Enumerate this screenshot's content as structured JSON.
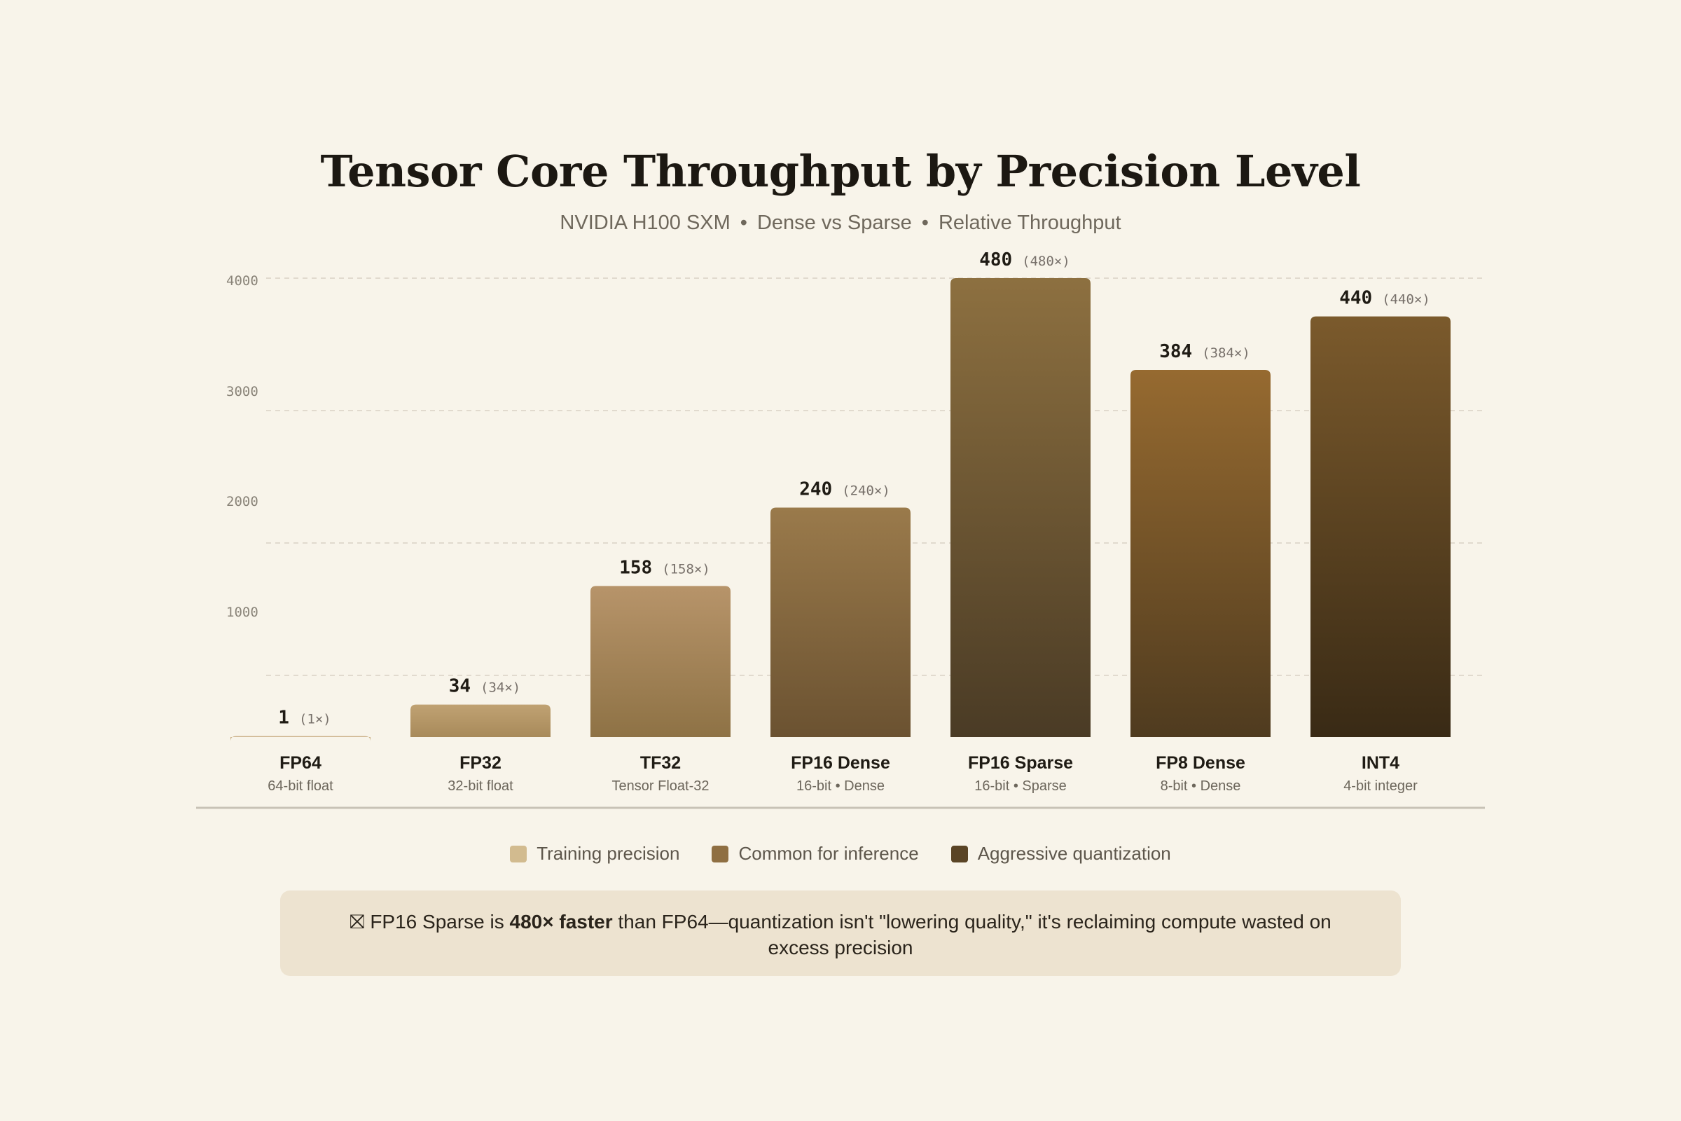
{
  "title": "Tensor Core Throughput by Precision Level",
  "subtitle": {
    "part1": "NVIDIA H100 SXM",
    "part2": "Dense vs Sparse",
    "part3": "Relative Throughput",
    "separator": "•"
  },
  "chart_data": {
    "type": "bar",
    "title": "Tensor Core Throughput by Precision Level",
    "subtitle": "NVIDIA H100 SXM • Dense vs Sparse • Relative Throughput",
    "categories": [
      "FP64",
      "FP32",
      "TF32",
      "FP16 Dense",
      "FP16 Sparse",
      "FP8 Dense",
      "INT4"
    ],
    "category_sublabels": [
      "64-bit float",
      "32-bit float",
      "Tensor Float-32",
      "16-bit • Dense",
      "16-bit • Sparse",
      "8-bit • Dense",
      "4-bit integer"
    ],
    "values": [
      1,
      34,
      158,
      240,
      480,
      384,
      440
    ],
    "value_labels": [
      "1",
      "34",
      "158",
      "240",
      "480",
      "384",
      "440"
    ],
    "multiplier_labels": [
      "(1×)",
      "(34×)",
      "(158×)",
      "(240×)",
      "(480×)",
      "(384×)",
      "(440×)"
    ],
    "groups": [
      "training",
      "training",
      "inference",
      "inference",
      "quantization",
      "inference",
      "quantization"
    ],
    "y_ticks": [
      "1000",
      "2000",
      "3000",
      "4000"
    ],
    "ylim": [
      0,
      480
    ],
    "grid": true,
    "legend_placement": "bottom-center",
    "bar_gradients": [
      [
        "#cdb48c",
        "#c0a67a"
      ],
      [
        "#c0a273",
        "#a88a5a"
      ],
      [
        "#b7946a",
        "#8e7245"
      ],
      [
        "#9a7a4b",
        "#6b5231"
      ],
      [
        "#8d7040",
        "#4a3b25"
      ],
      [
        "#966a30",
        "#4f3b1f"
      ],
      [
        "#7b5a2c",
        "#392a15"
      ]
    ]
  },
  "legend": [
    {
      "label": "Training precision",
      "color": "#d2bb8f"
    },
    {
      "label": "Common for inference",
      "color": "#8f6f42"
    },
    {
      "label": "Aggressive quantization",
      "color": "#5a4425"
    }
  ],
  "callout": {
    "icon": "⛝",
    "text_before": "FP16 Sparse is ",
    "bold": "480× faster",
    "text_after": " than FP64—quantization isn't \"lowering quality,\" it's reclaiming compute wasted on excess precision"
  },
  "colors": {
    "background": "#f8f4ea",
    "grid": "#d9d2c4",
    "baseline": "#c8c2b6",
    "value_text": "#1f1b14",
    "multiplier_text": "#77706a"
  }
}
